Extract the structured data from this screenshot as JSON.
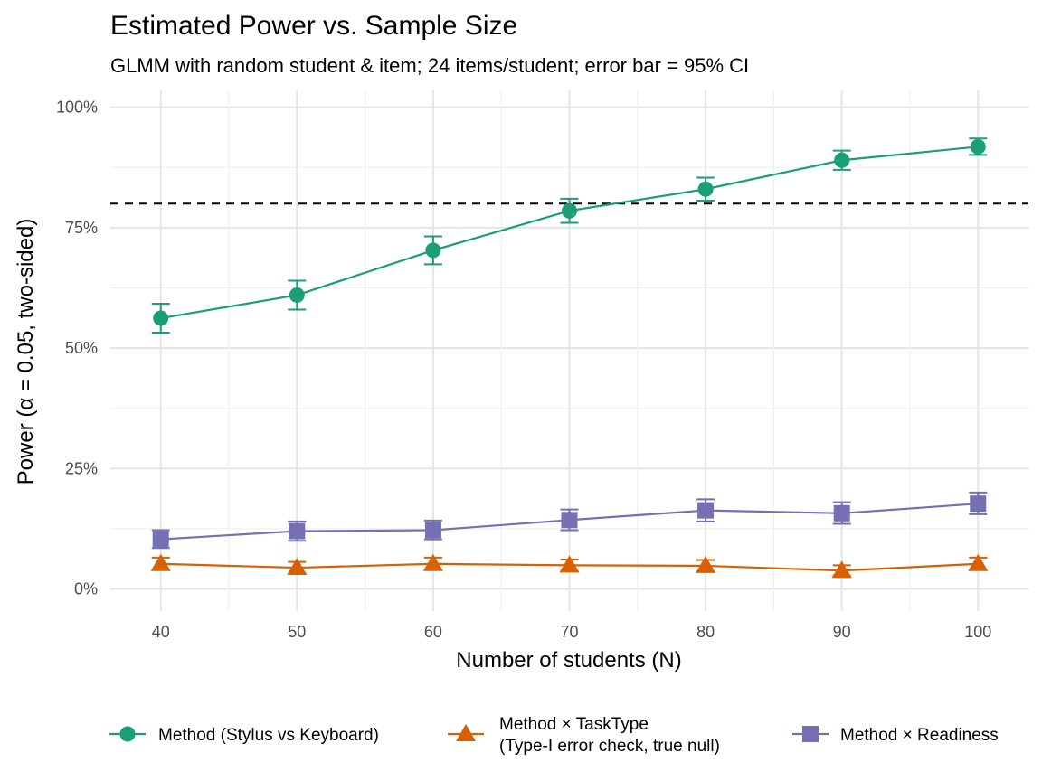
{
  "chart_data": {
    "type": "line",
    "title": "Estimated Power vs. Sample Size",
    "subtitle": "GLMM with random student & item; 24 items/student; error bar = 95% CI",
    "xlabel": "Number of students (N)",
    "ylabel": "Power (α = 0.05, two-sided)",
    "x": [
      40,
      50,
      60,
      70,
      80,
      90,
      100
    ],
    "xlim": [
      36.3,
      103.7
    ],
    "ylim": [
      -0.046,
      1.035
    ],
    "y_ticks": [
      0,
      0.25,
      0.5,
      0.75,
      1.0
    ],
    "y_tick_labels": [
      "0%",
      "25%",
      "50%",
      "75%",
      "100%"
    ],
    "x_ticks": [
      40,
      50,
      60,
      70,
      80,
      90,
      100
    ],
    "x_tick_labels": [
      "40",
      "50",
      "60",
      "70",
      "80",
      "90",
      "100"
    ],
    "reference_line": {
      "y": 0.8,
      "style": "dashed",
      "color": "#000000"
    },
    "grid": true,
    "legend_position": "bottom",
    "series": [
      {
        "name": "Method (Stylus vs Keyboard)",
        "marker": "circle",
        "color": "#1b9e77",
        "values": [
          0.562,
          0.61,
          0.703,
          0.785,
          0.83,
          0.89,
          0.918
        ],
        "ci_low": [
          0.532,
          0.58,
          0.674,
          0.76,
          0.806,
          0.87,
          0.901
        ],
        "ci_high": [
          0.592,
          0.64,
          0.732,
          0.81,
          0.854,
          0.91,
          0.935
        ]
      },
      {
        "name": "Method × TaskType\n(Type-I error check, true null)",
        "marker": "triangle",
        "color": "#d95f02",
        "values": [
          0.052,
          0.044,
          0.052,
          0.049,
          0.048,
          0.038,
          0.052
        ],
        "ci_low": [
          0.04,
          0.033,
          0.04,
          0.037,
          0.036,
          0.028,
          0.04
        ],
        "ci_high": [
          0.065,
          0.056,
          0.065,
          0.061,
          0.06,
          0.049,
          0.065
        ]
      },
      {
        "name": "Method × Readiness",
        "marker": "square",
        "color": "#7570b3",
        "values": [
          0.103,
          0.12,
          0.122,
          0.143,
          0.163,
          0.157,
          0.177
        ],
        "ci_low": [
          0.085,
          0.1,
          0.103,
          0.122,
          0.14,
          0.135,
          0.155
        ],
        "ci_high": [
          0.122,
          0.14,
          0.142,
          0.165,
          0.186,
          0.18,
          0.2
        ]
      }
    ]
  }
}
